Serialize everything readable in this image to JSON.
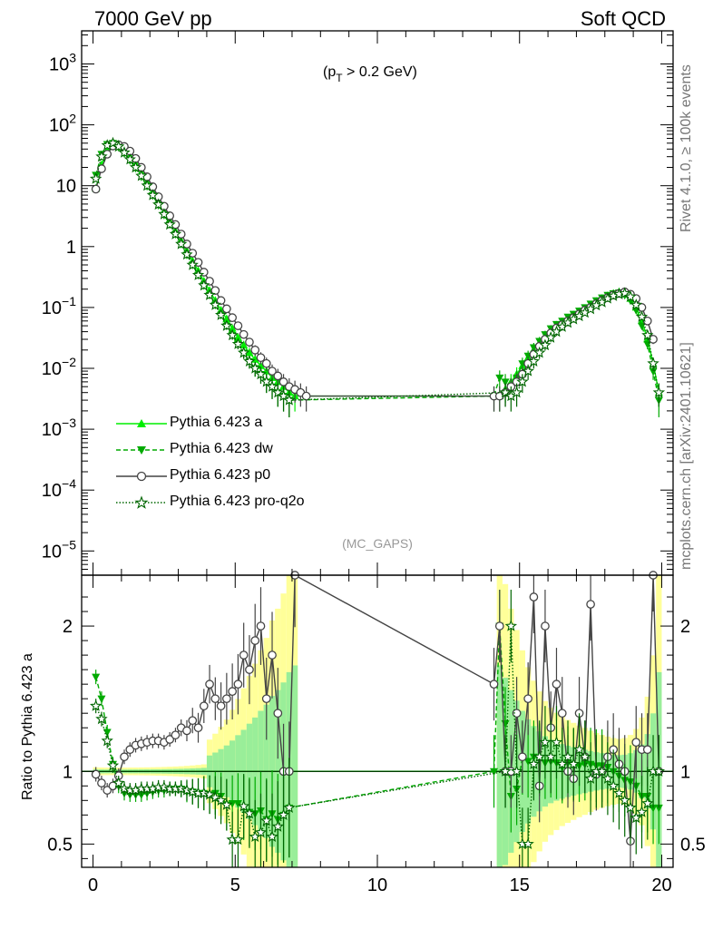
{
  "header": {
    "left": "7000 GeV pp",
    "right": "Soft QCD"
  },
  "side": {
    "rivet": "Rivet 4.1.0, ≥ 100k events",
    "mcplots": "mcplots.cern.ch [arXiv:2401.10621]"
  },
  "chart_data": [
    {
      "type": "line",
      "panel": "main",
      "annotation": "(p_T > 0.2 GeV)",
      "annotation_main": "(p",
      "annotation_sub": "T",
      "annotation_rest": " > 0.2 GeV)",
      "watermark": "(MC_GAPS)",
      "yscale": "log",
      "xlim": [
        -0.4,
        20.4
      ],
      "ylim": [
        4e-06,
        3500
      ],
      "y_ticks": [
        {
          "label": "10",
          "exp": "3",
          "value": 1000
        },
        {
          "label": "10",
          "exp": "2",
          "value": 100
        },
        {
          "label": "10",
          "exp": "",
          "value": 10
        },
        {
          "label": "1",
          "exp": "",
          "value": 1
        },
        {
          "label": "10",
          "exp": "−1",
          "value": 0.1
        },
        {
          "label": "10",
          "exp": "−2",
          "value": 0.01
        },
        {
          "label": "10",
          "exp": "−3",
          "value": 0.001
        },
        {
          "label": "10",
          "exp": "−4",
          "value": 0.0001
        },
        {
          "label": "10",
          "exp": "−5",
          "value": 1e-05
        }
      ],
      "series": [
        {
          "name": "Pythia 6.423 a",
          "color": "#00ee00",
          "style": "solid",
          "marker": "triangle-up",
          "x": [
            0.1,
            0.3,
            0.5,
            0.7,
            0.9,
            1.1,
            1.3,
            1.5,
            1.7,
            1.9,
            2.1,
            2.3,
            2.5,
            2.7,
            2.9,
            3.1,
            3.3,
            3.5,
            3.7,
            3.9,
            4.1,
            4.3,
            4.5,
            4.7,
            4.9,
            5.1,
            5.3,
            5.5,
            5.7,
            5.9,
            6.1,
            6.3,
            6.5,
            6.7,
            6.9,
            7.1,
            14.3,
            14.5,
            14.7,
            14.9,
            15.1,
            15.3,
            15.5,
            15.7,
            15.9,
            16.1,
            16.3,
            16.5,
            16.7,
            16.9,
            17.1,
            17.3,
            17.5,
            17.7,
            17.9,
            18.1,
            18.3,
            18.5,
            18.7,
            18.9,
            19.1,
            19.3,
            19.5,
            19.7,
            19.9
          ],
          "y": [
            9,
            22,
            38,
            48,
            48,
            40,
            31,
            23,
            16.5,
            11.5,
            8,
            5.5,
            3.8,
            2.6,
            1.8,
            1.25,
            0.85,
            0.58,
            0.4,
            0.27,
            0.19,
            0.13,
            0.09,
            0.065,
            0.045,
            0.032,
            0.024,
            0.018,
            0.014,
            0.011,
            0.009,
            0.007,
            0.006,
            0.005,
            0.004,
            0.0035,
            0.0035,
            0.0045,
            0.006,
            0.008,
            0.011,
            0.015,
            0.02,
            0.026,
            0.034,
            0.042,
            0.05,
            0.058,
            0.066,
            0.075,
            0.085,
            0.095,
            0.11,
            0.125,
            0.14,
            0.155,
            0.17,
            0.18,
            0.17,
            0.14,
            0.1,
            0.06,
            0.03,
            0.012,
            0.004
          ]
        },
        {
          "name": "Pythia 6.423 dw",
          "color": "#00aa00",
          "style": "dashed",
          "marker": "triangle-down",
          "x": [
            0.1,
            0.3,
            0.5,
            0.7,
            0.9,
            1.1,
            1.3,
            1.5,
            1.7,
            1.9,
            2.1,
            2.3,
            2.5,
            2.7,
            2.9,
            3.1,
            3.3,
            3.5,
            3.7,
            3.9,
            4.1,
            4.3,
            4.5,
            4.7,
            4.9,
            5.1,
            5.3,
            5.5,
            5.7,
            5.9,
            6.1,
            6.3,
            6.5,
            6.7,
            6.9,
            14.1,
            14.3,
            14.5,
            14.7,
            14.9,
            15.1,
            15.3,
            15.5,
            15.7,
            15.9,
            16.1,
            16.3,
            16.5,
            16.7,
            16.9,
            17.1,
            17.3,
            17.5,
            17.7,
            17.9,
            18.1,
            18.3,
            18.5,
            18.7,
            18.9,
            19.1,
            19.3,
            19.5,
            19.7,
            19.9
          ],
          "y": [
            15,
            33,
            48,
            50,
            43,
            34,
            26,
            19.5,
            14,
            9.8,
            6.9,
            4.8,
            3.3,
            2.3,
            1.6,
            1.1,
            0.73,
            0.5,
            0.34,
            0.23,
            0.16,
            0.11,
            0.075,
            0.05,
            0.035,
            0.025,
            0.018,
            0.013,
            0.01,
            0.008,
            0.006,
            0.005,
            0.004,
            0.0035,
            0.003,
            0.0035,
            0.007,
            0.006,
            0.005,
            0.007,
            0.012,
            0.016,
            0.022,
            0.028,
            0.036,
            0.045,
            0.053,
            0.06,
            0.07,
            0.078,
            0.088,
            0.1,
            0.115,
            0.13,
            0.145,
            0.16,
            0.17,
            0.175,
            0.16,
            0.13,
            0.09,
            0.05,
            0.025,
            0.009,
            0.003
          ]
        },
        {
          "name": "Pythia 6.423 p0",
          "color": "#444444",
          "style": "solid",
          "marker": "circle-open",
          "x": [
            0.1,
            0.3,
            0.5,
            0.7,
            0.9,
            1.1,
            1.3,
            1.5,
            1.7,
            1.9,
            2.1,
            2.3,
            2.5,
            2.7,
            2.9,
            3.1,
            3.3,
            3.5,
            3.7,
            3.9,
            4.1,
            4.3,
            4.5,
            4.7,
            4.9,
            5.1,
            5.3,
            5.5,
            5.7,
            5.9,
            6.1,
            6.3,
            6.5,
            6.7,
            6.9,
            7.1,
            7.3,
            7.5,
            14.1,
            14.3,
            14.5,
            14.7,
            14.9,
            15.1,
            15.3,
            15.5,
            15.7,
            15.9,
            16.1,
            16.3,
            16.5,
            16.7,
            16.9,
            17.1,
            17.3,
            17.5,
            17.7,
            17.9,
            18.1,
            18.3,
            18.5,
            18.7,
            18.9,
            19.1,
            19.3,
            19.5,
            19.7
          ],
          "y": [
            8.8,
            19,
            33,
            45,
            47,
            44,
            37,
            28,
            20,
            14,
            9.6,
            6.6,
            4.6,
            3.2,
            2.3,
            1.6,
            1.1,
            0.78,
            0.55,
            0.38,
            0.27,
            0.19,
            0.13,
            0.095,
            0.068,
            0.05,
            0.036,
            0.027,
            0.02,
            0.015,
            0.012,
            0.009,
            0.0075,
            0.006,
            0.005,
            0.0045,
            0.004,
            0.0035,
            0.0035,
            0.0035,
            0.004,
            0.005,
            0.006,
            0.008,
            0.012,
            0.017,
            0.023,
            0.03,
            0.038,
            0.046,
            0.052,
            0.06,
            0.068,
            0.078,
            0.09,
            0.1,
            0.115,
            0.13,
            0.145,
            0.16,
            0.17,
            0.18,
            0.165,
            0.14,
            0.1,
            0.06,
            0.03
          ]
        },
        {
          "name": "Pythia 6.423 pro-q2o",
          "color": "#006600",
          "style": "dotted",
          "marker": "star-open",
          "x": [
            0.1,
            0.3,
            0.5,
            0.7,
            0.9,
            1.1,
            1.3,
            1.5,
            1.7,
            1.9,
            2.1,
            2.3,
            2.5,
            2.7,
            2.9,
            3.1,
            3.3,
            3.5,
            3.7,
            3.9,
            4.1,
            4.3,
            4.5,
            4.7,
            4.9,
            5.1,
            5.3,
            5.5,
            5.7,
            5.9,
            6.1,
            6.3,
            6.5,
            6.7,
            6.9,
            14.5,
            14.7,
            14.9,
            15.1,
            15.3,
            15.5,
            15.7,
            15.9,
            16.1,
            16.3,
            16.5,
            16.7,
            16.9,
            17.1,
            17.3,
            17.5,
            17.7,
            17.9,
            18.1,
            18.3,
            18.5,
            18.7,
            18.9,
            19.1,
            19.3,
            19.5,
            19.7,
            19.9
          ],
          "y": [
            13,
            30,
            46,
            50,
            44,
            35,
            27,
            20,
            14.5,
            10,
            7,
            4.9,
            3.4,
            2.3,
            1.6,
            1.1,
            0.74,
            0.5,
            0.34,
            0.23,
            0.16,
            0.11,
            0.075,
            0.05,
            0.035,
            0.025,
            0.018,
            0.013,
            0.01,
            0.008,
            0.006,
            0.005,
            0.004,
            0.0035,
            0.003,
            0.004,
            0.0035,
            0.004,
            0.006,
            0.009,
            0.013,
            0.018,
            0.024,
            0.032,
            0.04,
            0.048,
            0.056,
            0.064,
            0.072,
            0.082,
            0.094,
            0.108,
            0.122,
            0.14,
            0.155,
            0.165,
            0.17,
            0.15,
            0.11,
            0.07,
            0.035,
            0.012,
            0.004
          ]
        }
      ]
    },
    {
      "type": "line",
      "panel": "ratio",
      "ylabel": "Ratio to Pythia 6.423 a",
      "xlim": [
        -0.4,
        20.4
      ],
      "ylim": [
        0.34,
        2.35
      ],
      "y_ticks": [
        "0.5",
        "1",
        "2"
      ],
      "x_ticks": [
        "0",
        "5",
        "10",
        "15",
        "20"
      ],
      "series": [
        {
          "name": "Pythia 6.423 dw",
          "x": [
            0.1,
            0.3,
            0.5,
            0.7,
            0.9,
            1.1,
            1.3,
            1.5,
            1.7,
            1.9,
            2.1,
            2.3,
            2.5,
            2.7,
            2.9,
            3.1,
            3.3,
            3.5,
            3.7,
            3.9,
            4.1,
            4.3,
            4.5,
            4.7,
            4.9,
            5.1,
            5.3,
            5.5,
            5.7,
            5.9,
            6.1,
            6.3,
            6.5,
            6.7,
            6.9,
            14.1,
            14.3,
            14.5,
            14.7,
            14.9,
            15.1,
            15.3,
            15.5,
            15.7,
            15.9,
            16.1,
            16.3,
            16.5,
            16.7,
            16.9,
            17.1,
            17.3,
            17.5,
            17.7,
            17.9,
            18.1,
            18.3,
            18.5,
            18.7,
            18.9,
            19.1,
            19.3,
            19.5,
            19.7,
            19.9
          ],
          "y": [
            1.65,
            1.5,
            1.27,
            1.05,
            0.9,
            0.85,
            0.84,
            0.84,
            0.84,
            0.85,
            0.86,
            0.87,
            0.87,
            0.88,
            0.88,
            0.88,
            0.86,
            0.86,
            0.85,
            0.85,
            0.84,
            0.85,
            0.83,
            0.77,
            0.78,
            0.78,
            0.75,
            0.72,
            0.71,
            0.73,
            0.67,
            0.71,
            0.67,
            0.7,
            0.75,
            1.0,
            2.0,
            1.33,
            0.83,
            0.88,
            1.09,
            1.07,
            1.1,
            1.08,
            1.06,
            1.07,
            1.06,
            1.03,
            1.06,
            1.04,
            1.04,
            1.05,
            1.05,
            1.04,
            1.04,
            1.03,
            1.0,
            0.97,
            0.94,
            0.93,
            0.9,
            0.83,
            0.83,
            0.75,
            0.75
          ]
        },
        {
          "name": "Pythia 6.423 p0",
          "x": [
            0.1,
            0.3,
            0.5,
            0.7,
            0.9,
            1.1,
            1.3,
            1.5,
            1.7,
            1.9,
            2.1,
            2.3,
            2.5,
            2.7,
            2.9,
            3.1,
            3.3,
            3.5,
            3.7,
            3.9,
            4.1,
            4.3,
            4.5,
            4.7,
            4.9,
            5.1,
            5.3,
            5.5,
            5.7,
            5.9,
            6.1,
            6.3,
            6.5,
            6.7,
            6.9,
            7.1,
            14.1,
            14.3,
            14.5,
            14.7,
            14.9,
            15.1,
            15.3,
            15.5,
            15.7,
            15.9,
            16.1,
            16.3,
            16.5,
            16.7,
            16.9,
            17.1,
            17.3,
            17.5,
            17.7,
            17.9,
            18.1,
            18.3,
            18.5,
            18.7,
            18.9,
            19.1,
            19.3,
            19.5,
            19.7,
            19.9
          ],
          "y": [
            0.98,
            0.92,
            0.87,
            0.9,
            0.97,
            1.1,
            1.15,
            1.18,
            1.19,
            1.2,
            1.21,
            1.21,
            1.2,
            1.22,
            1.25,
            1.3,
            1.28,
            1.35,
            1.3,
            1.45,
            1.6,
            1.5,
            1.45,
            1.5,
            1.55,
            1.6,
            1.8,
            1.7,
            1.9,
            2.0,
            1.5,
            1.8,
            1.4,
            1.0,
            1.0,
            2.35,
            1.6,
            2.0,
            1.0,
            1.0,
            1.4,
            1.1,
            1.5,
            2.2,
            0.9,
            2.0,
            1.3,
            1.6,
            1.4,
            1.0,
            0.95,
            1.4,
            1.1,
            2.15,
            0.98,
            1.0,
            1.1,
            1.15,
            1.05,
            1.0,
            0.52,
            1.2,
            1.15,
            1.15,
            2.35,
            1.0
          ]
        },
        {
          "name": "Pythia 6.423 pro-q2o",
          "x": [
            0.1,
            0.3,
            0.5,
            0.7,
            0.9,
            1.1,
            1.3,
            1.5,
            1.7,
            1.9,
            2.1,
            2.3,
            2.5,
            2.7,
            2.9,
            3.1,
            3.3,
            3.5,
            3.7,
            3.9,
            4.1,
            4.3,
            4.5,
            4.7,
            4.9,
            5.1,
            5.3,
            5.5,
            5.7,
            5.9,
            6.1,
            6.3,
            6.5,
            6.7,
            6.9,
            14.5,
            14.7,
            14.9,
            15.1,
            15.3,
            15.5,
            15.7,
            15.9,
            16.1,
            16.3,
            16.5,
            16.7,
            16.9,
            17.1,
            17.3,
            17.5,
            17.7,
            17.9,
            18.1,
            18.3,
            18.5,
            18.7,
            18.9,
            19.1,
            19.3,
            19.5,
            19.7,
            19.9
          ],
          "y": [
            1.45,
            1.36,
            1.21,
            1.04,
            0.92,
            0.88,
            0.87,
            0.87,
            0.88,
            0.88,
            0.88,
            0.89,
            0.89,
            0.88,
            0.88,
            0.88,
            0.87,
            0.86,
            0.85,
            0.85,
            0.84,
            0.82,
            0.8,
            0.77,
            0.53,
            0.53,
            0.76,
            0.71,
            0.55,
            0.58,
            0.66,
            0.55,
            0.62,
            0.7,
            0.75,
            1.0,
            2.0,
            1.0,
            0.5,
            0.5,
            1.05,
            1.1,
            1.2,
            1.1,
            1.2,
            1.05,
            1.1,
            1.05,
            1.15,
            1.1,
            0.95,
            1.0,
            1.0,
            0.95,
            0.9,
            0.85,
            0.8,
            0.75,
            0.68,
            0.72,
            0.78,
            1.0,
            1.0
          ]
        }
      ]
    }
  ]
}
